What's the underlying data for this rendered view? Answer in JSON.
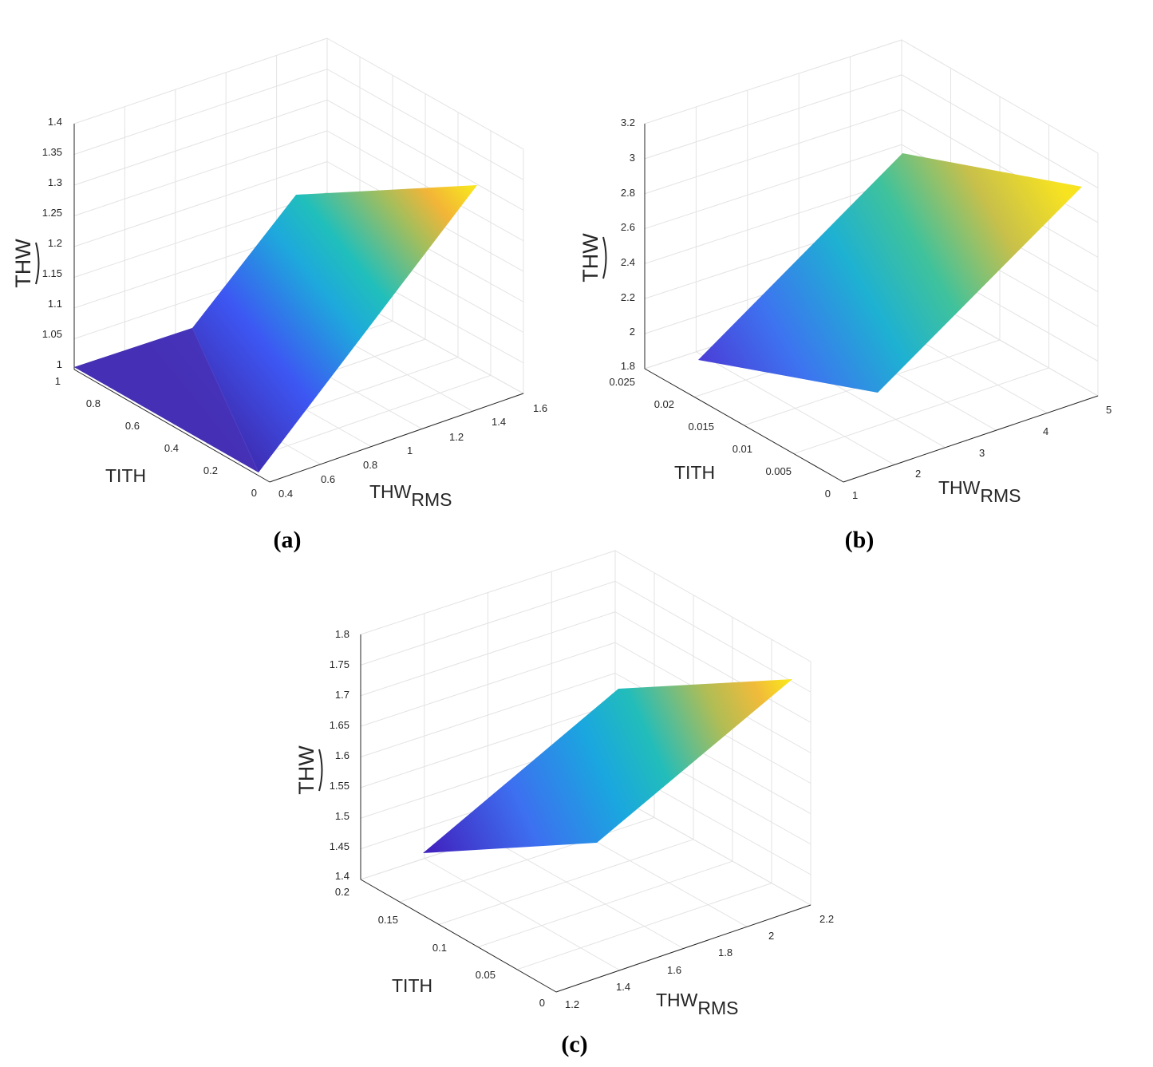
{
  "chart_data": [
    {
      "type": "surface",
      "panel_label": "(a)",
      "xlabel": "THW",
      "xlabel_sub": "RMS",
      "ylabel": "TITH",
      "zlabel": "THW",
      "zlabel_hat": true,
      "colormap": "parula",
      "grid": true,
      "xlim": [
        0.4,
        1.6
      ],
      "ylim": [
        0,
        1
      ],
      "zlim": [
        1,
        1.4
      ],
      "xticks": [
        "0.4",
        "0.6",
        "0.8",
        "1",
        "1.2",
        "1.4",
        "1.6"
      ],
      "yticks": [
        "0",
        "0.2",
        "0.4",
        "0.6",
        "0.8",
        "1"
      ],
      "zticks": [
        "1",
        "1.05",
        "1.1",
        "1.15",
        "1.2",
        "1.25",
        "1.3",
        "1.35",
        "1.4"
      ],
      "surface_vertices": [
        {
          "x": 0.4,
          "y": 0,
          "z": 1.0
        },
        {
          "x": 0.4,
          "y": 1,
          "z": 1.0
        },
        {
          "x": 1.0,
          "y": 1,
          "z": 1.0
        },
        {
          "x": 1.6,
          "y": 1,
          "z": 1.24
        },
        {
          "x": 1.6,
          "y": 0,
          "z": 1.3
        },
        {
          "x": 1.0,
          "y": 0,
          "z": 1.29
        }
      ]
    },
    {
      "type": "surface",
      "panel_label": "(b)",
      "xlabel": "THW",
      "xlabel_sub": "RMS",
      "ylabel": "TITH",
      "zlabel": "THW",
      "zlabel_hat": true,
      "colormap": "parula",
      "grid": true,
      "xlim": [
        1,
        5
      ],
      "ylim": [
        0,
        0.025
      ],
      "zlim": [
        1.8,
        3.2
      ],
      "xticks": [
        "1",
        "2",
        "3",
        "4",
        "5"
      ],
      "yticks": [
        "0",
        "0.005",
        "0.01",
        "0.015",
        "0.02",
        "0.025"
      ],
      "zticks": [
        "1.8",
        "2",
        "2.2",
        "2.4",
        "2.6",
        "2.8",
        "3",
        "3.2"
      ],
      "surface_vertices": [
        {
          "x": 1,
          "y": 0.02,
          "z": 2.0
        },
        {
          "x": 5,
          "y": 0.02,
          "z": 2.6
        },
        {
          "x": 5,
          "y": 0,
          "z": 3.0
        },
        {
          "x": 1,
          "y": 0,
          "z": 3.0
        }
      ]
    },
    {
      "type": "surface",
      "panel_label": "(c)",
      "xlabel": "THW",
      "xlabel_sub": "RMS",
      "ylabel": "TITH",
      "zlabel": "THW",
      "zlabel_hat": true,
      "colormap": "parula",
      "grid": true,
      "xlim": [
        1.2,
        2.2
      ],
      "ylim": [
        0,
        0.2
      ],
      "zlim": [
        1.4,
        1.8
      ],
      "xticks": [
        "1.2",
        "1.4",
        "1.6",
        "1.8",
        "2",
        "2.2"
      ],
      "yticks": [
        "0",
        "0.05",
        "0.1",
        "0.15",
        "0.2"
      ],
      "zticks": [
        "1.4",
        "1.45",
        "1.5",
        "1.55",
        "1.6",
        "1.65",
        "1.7",
        "1.75",
        "1.8"
      ],
      "surface_vertices": [
        {
          "x": 1.2,
          "y": 0.2,
          "z": 1.47
        },
        {
          "x": 2.2,
          "y": 0.2,
          "z": 1.6
        },
        {
          "x": 2.2,
          "y": 0,
          "z": 1.68
        },
        {
          "x": 1.2,
          "y": 0,
          "z": 1.68
        }
      ]
    }
  ]
}
